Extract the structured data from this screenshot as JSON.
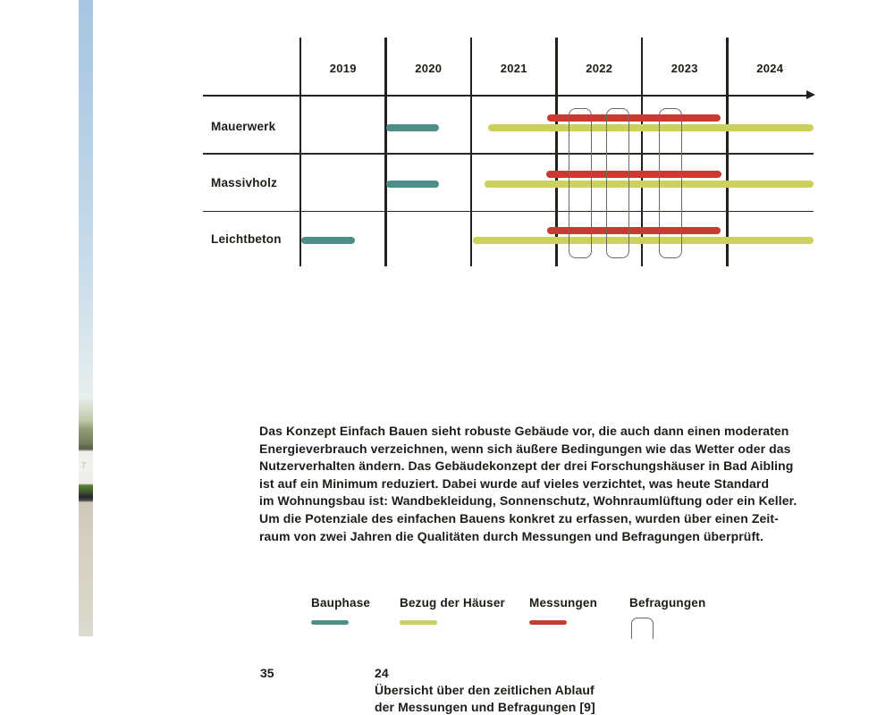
{
  "page": {
    "photo_strip_mark": "7",
    "body_text": "Das Konzept Einfach Bauen sieht robuste Gebäude vor, die auch dann einen moderaten\nEnergieverbrauch verzeichnen, wenn sich äußere Bedingungen wie das Wetter oder das\nNutzerverhalten ändern. Das Gebäudekonzept der drei Forschungshäuser in Bad Aibling\nist auf ein Minimum reduziert. Dabei wurde auf vieles verzichtet, was heute Standard\nim Wohnungsbau ist: Wandbekleidung, Sonnenschutz, Wohnraumlüftung oder ein Keller.\nUm die Potenziale des einfachen Bauens konkret zu erfassen, wurden über einen Zeit-\nraum von zwei Jahren die Qualitäten durch Messungen und Befragungen überprüft.",
    "page_number": "35",
    "figure_caption": "24\nÜbersicht über den zeitlichen Ablauf\nder Messungen und Befragungen [9]"
  },
  "legend": {
    "items": [
      {
        "label": "Bauphase",
        "type": "bauphase",
        "color": "#4e8e88"
      },
      {
        "label": "Bezug der Häuser",
        "type": "bezug",
        "color": "#ccd05c"
      },
      {
        "label": "Messungen",
        "type": "messungen",
        "color": "#c93b30"
      },
      {
        "label": "Befragungen",
        "type": "befragungen",
        "color": "#6b6b60"
      }
    ]
  },
  "chart_data": {
    "type": "gantt",
    "title": "",
    "x_ticks": [
      "2019",
      "2020",
      "2021",
      "2022",
      "2023",
      "2024"
    ],
    "x_range_years": [
      2017.9,
      2025.05
    ],
    "grid": true,
    "rows": [
      {
        "label": "Mauerwerk",
        "bauphase": [
          2020.0,
          2020.62
        ],
        "bezug": [
          2021.2,
          2025.01
        ],
        "messungen": [
          2021.89,
          2023.92
        ]
      },
      {
        "label": "Massivholz",
        "bauphase": [
          2020.0,
          2020.62
        ],
        "bezug": [
          2021.16,
          2025.01
        ],
        "messungen": [
          2021.88,
          2023.93
        ]
      },
      {
        "label": "Leichtbeton",
        "bauphase": [
          2019.01,
          2019.64
        ],
        "bezug": [
          2021.02,
          2025.01
        ],
        "messungen": [
          2021.89,
          2023.92
        ]
      }
    ],
    "befragungen_windows": [
      [
        2022.14,
        2022.41
      ],
      [
        2022.58,
        2022.85
      ],
      [
        2023.2,
        2023.47
      ]
    ],
    "colors": {
      "bauphase": "#4e8e88",
      "bezug": "#ccd05c",
      "messungen": "#c93b30",
      "befragungen_outline": "#6b6b60",
      "axis": "#21211b"
    }
  }
}
